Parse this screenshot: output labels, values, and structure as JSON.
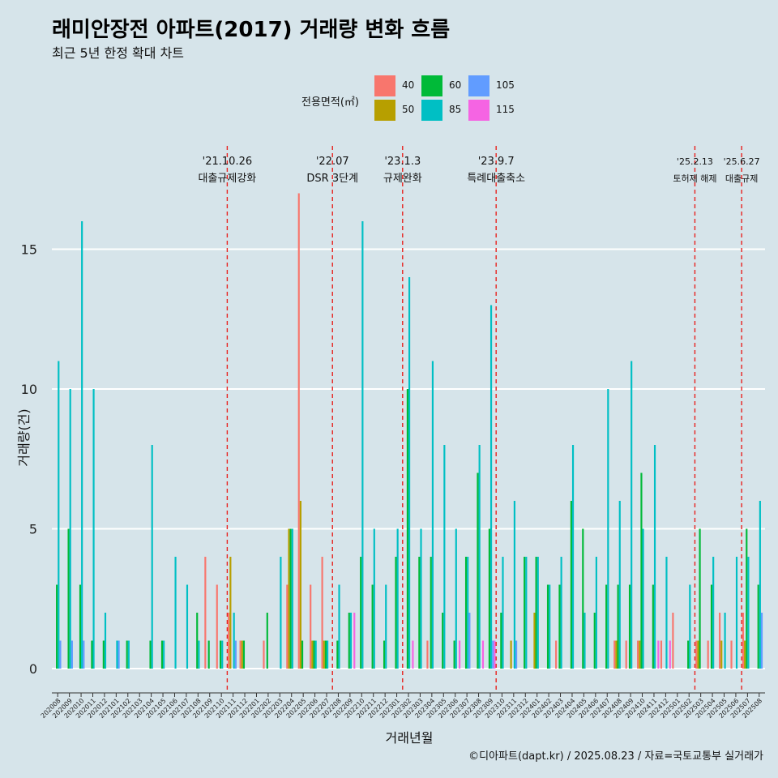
{
  "title": "래미안장전 아파트(2017) 거래량 변화 흐름",
  "subtitle": "최근 5년 한정 확대 차트",
  "caption": "©디아파트(dapt.kr) / 2025.08.23 / 자료=국토교통부 실거래가",
  "legend": {
    "title": "전용면적(㎡)",
    "items": [
      {
        "label": "40",
        "color": "#f8766d"
      },
      {
        "label": "50",
        "color": "#b79f00"
      },
      {
        "label": "60",
        "color": "#00ba38"
      },
      {
        "label": "85",
        "color": "#00bfc4"
      },
      {
        "label": "105",
        "color": "#619cff"
      },
      {
        "label": "115",
        "color": "#f564e3"
      }
    ]
  },
  "chart_data": {
    "type": "bar",
    "xlabel": "거래년월",
    "ylabel": "거래량(건)",
    "ylim": [
      0,
      17.5
    ],
    "yticks": [
      0,
      5,
      10,
      15
    ],
    "grid": true,
    "legend_position": "top",
    "categories": [
      "202008",
      "202009",
      "202010",
      "202011",
      "202012",
      "202101",
      "202102",
      "202103",
      "202104",
      "202105",
      "202106",
      "202107",
      "202108",
      "202109",
      "202110",
      "202111",
      "202112",
      "202201",
      "202202",
      "202203",
      "202204",
      "202205",
      "202206",
      "202207",
      "202208",
      "202209",
      "202210",
      "202211",
      "202212",
      "202301",
      "202302",
      "202303",
      "202304",
      "202305",
      "202306",
      "202307",
      "202308",
      "202309",
      "202310",
      "202311",
      "202312",
      "202401",
      "202402",
      "202403",
      "202404",
      "202405",
      "202406",
      "202407",
      "202408",
      "202409",
      "202410",
      "202411",
      "202412",
      "202501",
      "202502",
      "202503",
      "202504",
      "202505",
      "202506",
      "202507",
      "202508"
    ],
    "series": [
      {
        "name": "40",
        "values": [
          0,
          0,
          0,
          0,
          0,
          0,
          0,
          0,
          0,
          0,
          0,
          0,
          0,
          4,
          3,
          2,
          1,
          0,
          1,
          0,
          3,
          17,
          3,
          4,
          0,
          0,
          0,
          0,
          0,
          0,
          0,
          0,
          1,
          0,
          0,
          0,
          0,
          0,
          0,
          0,
          0,
          0,
          0,
          1,
          0,
          0,
          0,
          0,
          1,
          1,
          1,
          0,
          1,
          2,
          0,
          1,
          1,
          2,
          1,
          2,
          0
        ]
      },
      {
        "name": "50",
        "values": [
          0,
          0,
          0,
          0,
          0,
          0,
          0,
          0,
          0,
          0,
          0,
          0,
          0,
          0,
          0,
          4,
          1,
          0,
          0,
          0,
          5,
          6,
          1,
          1,
          0,
          0,
          0,
          0,
          0,
          0,
          0,
          0,
          0,
          0,
          0,
          0,
          0,
          0,
          0,
          1,
          0,
          2,
          0,
          0,
          0,
          0,
          0,
          0,
          1,
          0,
          1,
          0,
          0,
          0,
          0,
          1,
          0,
          1,
          0,
          1,
          0
        ]
      },
      {
        "name": "60",
        "values": [
          3,
          5,
          3,
          1,
          1,
          0,
          1,
          0,
          1,
          1,
          0,
          0,
          2,
          1,
          1,
          0,
          1,
          0,
          2,
          0,
          5,
          1,
          1,
          1,
          1,
          2,
          4,
          3,
          1,
          4,
          10,
          4,
          4,
          2,
          1,
          4,
          7,
          5,
          2,
          0,
          4,
          4,
          3,
          3,
          6,
          5,
          2,
          3,
          3,
          3,
          7,
          3,
          0,
          0,
          1,
          5,
          3,
          0,
          0,
          5,
          3
        ]
      },
      {
        "name": "85",
        "values": [
          11,
          10,
          16,
          10,
          2,
          1,
          1,
          0,
          8,
          1,
          4,
          3,
          1,
          0,
          1,
          2,
          0,
          0,
          0,
          4,
          5,
          0,
          1,
          1,
          3,
          2,
          16,
          5,
          3,
          5,
          14,
          5,
          11,
          8,
          5,
          4,
          8,
          13,
          4,
          6,
          4,
          4,
          3,
          4,
          8,
          2,
          4,
          10,
          6,
          11,
          5,
          8,
          4,
          0,
          3,
          0,
          4,
          2,
          4,
          4,
          6
        ]
      },
      {
        "name": "105",
        "values": [
          1,
          1,
          1,
          0,
          0,
          1,
          0,
          0,
          0,
          0,
          0,
          0,
          0,
          0,
          0,
          1,
          0,
          0,
          0,
          0,
          0,
          0,
          0,
          0,
          0,
          0,
          0,
          0,
          0,
          0,
          0,
          0,
          0,
          0,
          0,
          2,
          0,
          1,
          0,
          1,
          0,
          0,
          0,
          0,
          0,
          0,
          0,
          0,
          0,
          0,
          0,
          0,
          0,
          0,
          0,
          0,
          0,
          0,
          0,
          0,
          2
        ]
      },
      {
        "name": "115",
        "values": [
          0,
          0,
          0,
          0,
          0,
          0,
          0,
          0,
          0,
          0,
          0,
          0,
          0,
          0,
          0,
          0,
          0,
          0,
          0,
          0,
          0,
          0,
          0,
          0,
          0,
          2,
          0,
          0,
          0,
          0,
          1,
          0,
          0,
          0,
          1,
          0,
          1,
          1,
          0,
          0,
          0,
          0,
          0,
          0,
          0,
          0,
          0,
          0,
          0,
          0,
          0,
          1,
          1,
          0,
          0,
          0,
          0,
          0,
          0,
          0,
          0
        ]
      }
    ],
    "events": [
      {
        "date": "'21.10.26",
        "label": "대출규제강화",
        "after": "202110"
      },
      {
        "date": "'22.07",
        "label": "DSR 3단계",
        "after": "202207"
      },
      {
        "date": "'23.1.3",
        "label": "규제완화",
        "after": "202301"
      },
      {
        "date": "'23.9.7",
        "label": "특례대출축소",
        "after": "202309"
      },
      {
        "date": "'25.2.13",
        "label": "토허제 해제",
        "after": "202502"
      },
      {
        "date": "'25.6.27",
        "label": "대출규제",
        "after": "202506"
      }
    ]
  }
}
